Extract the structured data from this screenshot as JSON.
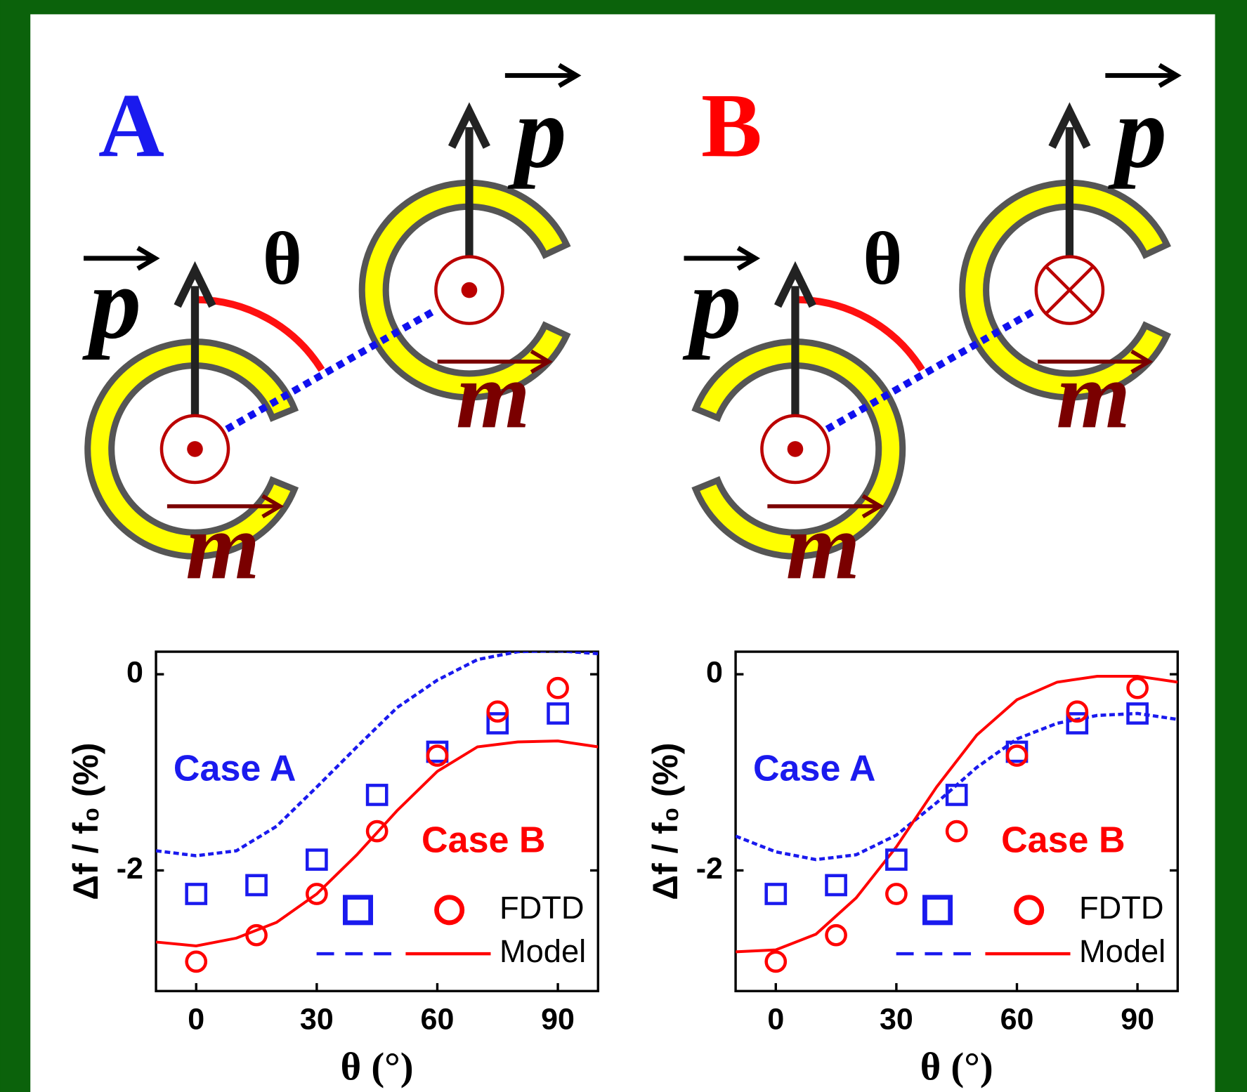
{
  "diagrams": [
    {
      "label": "A",
      "theta": "θ",
      "dipole": "p",
      "moment": "m",
      "color": "#1a1aee"
    },
    {
      "label": "B",
      "theta": "θ",
      "dipole": "p",
      "moment": "m",
      "color": "#ff0000"
    }
  ],
  "chart_data": [
    {
      "type": "scatter",
      "xlabel": "θ (°)",
      "ylabel": "Δf / f₀ (%)",
      "xlim": [
        -10,
        100
      ],
      "ylim": [
        -3.23,
        0.23
      ],
      "xticks": [
        0,
        30,
        60,
        90
      ],
      "yticks": [
        -2,
        0
      ],
      "series": [
        {
          "name": "Case A",
          "color": "#1a1aee",
          "marker": "square",
          "x": [
            0,
            15,
            30,
            45,
            60,
            75,
            90
          ],
          "values": [
            -2.24,
            -2.15,
            -1.89,
            -1.23,
            -0.79,
            -0.5,
            -0.4
          ]
        },
        {
          "name": "Case B",
          "color": "#ff0000",
          "marker": "circle",
          "x": [
            0,
            15,
            30,
            45,
            60,
            75,
            90
          ],
          "values": [
            -2.93,
            -2.66,
            -2.24,
            -1.6,
            -0.83,
            -0.38,
            -0.14
          ]
        }
      ],
      "model": [
        {
          "color": "#1a1aee",
          "dashed": true,
          "x": [
            -10,
            0,
            10,
            20,
            30,
            40,
            50,
            60,
            70,
            80,
            90,
            100
          ],
          "values": [
            -1.8,
            -1.85,
            -1.8,
            -1.55,
            -1.15,
            -0.74,
            -0.34,
            -0.06,
            0.15,
            0.23,
            0.24,
            0.21
          ]
        },
        {
          "color": "#ff0000",
          "dashed": false,
          "x": [
            -10,
            0,
            10,
            20,
            30,
            40,
            50,
            60,
            70,
            80,
            90,
            100
          ],
          "values": [
            -2.73,
            -2.77,
            -2.69,
            -2.53,
            -2.24,
            -1.84,
            -1.39,
            -0.99,
            -0.74,
            -0.69,
            -0.68,
            -0.74
          ]
        }
      ],
      "legend": [
        "FDTD",
        "Model"
      ]
    },
    {
      "type": "scatter",
      "xlabel": "θ (°)",
      "ylabel": "Δf / f₀ (%)",
      "xlim": [
        -10,
        100
      ],
      "ylim": [
        -3.23,
        0.23
      ],
      "xticks": [
        0,
        30,
        60,
        90
      ],
      "yticks": [
        -2,
        0
      ],
      "series": [
        {
          "name": "Case A",
          "color": "#1a1aee",
          "marker": "square",
          "x": [
            0,
            15,
            30,
            45,
            60,
            75,
            90
          ],
          "values": [
            -2.24,
            -2.15,
            -1.89,
            -1.23,
            -0.79,
            -0.5,
            -0.4
          ]
        },
        {
          "name": "Case B",
          "color": "#ff0000",
          "marker": "circle",
          "x": [
            0,
            15,
            30,
            45,
            60,
            75,
            90
          ],
          "values": [
            -2.93,
            -2.66,
            -2.24,
            -1.6,
            -0.83,
            -0.38,
            -0.14
          ]
        }
      ],
      "model": [
        {
          "color": "#1a1aee",
          "dashed": true,
          "x": [
            -10,
            0,
            10,
            20,
            30,
            40,
            50,
            60,
            70,
            80,
            90,
            100
          ],
          "values": [
            -1.65,
            -1.81,
            -1.89,
            -1.84,
            -1.64,
            -1.31,
            -0.95,
            -0.66,
            -0.5,
            -0.42,
            -0.4,
            -0.46
          ]
        },
        {
          "color": "#ff0000",
          "dashed": false,
          "x": [
            -10,
            0,
            10,
            20,
            30,
            40,
            50,
            60,
            70,
            80,
            90,
            100
          ],
          "values": [
            -2.83,
            -2.81,
            -2.65,
            -2.28,
            -1.76,
            -1.15,
            -0.62,
            -0.26,
            -0.08,
            -0.02,
            -0.02,
            -0.08
          ]
        }
      ],
      "legend": [
        "FDTD",
        "Model"
      ]
    }
  ]
}
